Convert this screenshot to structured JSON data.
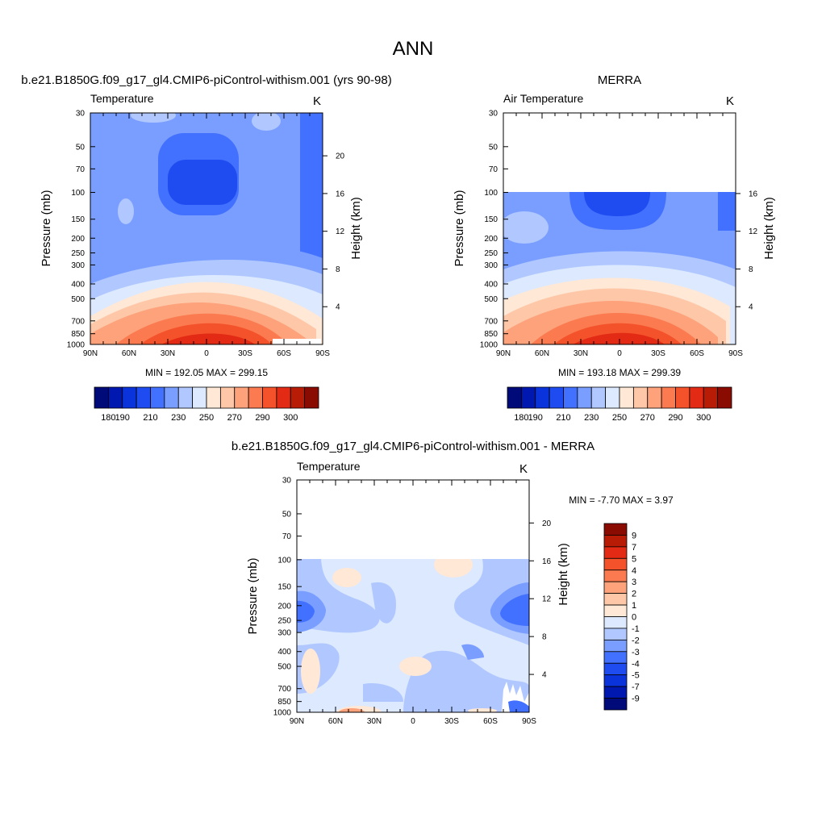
{
  "page": {
    "title": "ANN"
  },
  "panels": [
    {
      "id": "model",
      "header": "b.e21.B1850G.f09_g17_gl4.CMIP6-piControl-withism.001 (yrs 90-98)",
      "field_label": "Temperature",
      "units": "K",
      "ylabel_left": "Pressure (mb)",
      "ylabel_right": "Height (km)",
      "stats_text": "MIN = 192.05  MAX = 299.15",
      "stats": {
        "min": 192.05,
        "max": 299.15
      }
    },
    {
      "id": "obs",
      "header": "MERRA",
      "field_label": "Air Temperature",
      "units": "K",
      "ylabel_left": "Pressure (mb)",
      "ylabel_right": "Height (km)",
      "stats_text": "MIN = 193.18  MAX = 299.39",
      "stats": {
        "min": 193.18,
        "max": 299.39
      }
    },
    {
      "id": "diff",
      "header": "b.e21.B1850G.f09_g17_gl4.CMIP6-piControl-withism.001 - MERRA",
      "field_label": "Temperature",
      "units": "K",
      "ylabel_left": "Pressure (mb)",
      "ylabel_right": "Height (km)",
      "stats_text": "MIN =  -7.70  MAX =   3.97",
      "stats": {
        "min": -7.7,
        "max": 3.97
      }
    }
  ],
  "chart_data": [
    {
      "type": "heatmap",
      "panel": "model",
      "title": "Temperature",
      "units": "K",
      "xlabel": "",
      "ylabel": "Pressure (mb)",
      "ylabel_right": "Height (km)",
      "x_ticks": [
        "90N",
        "60N",
        "30N",
        "0",
        "30S",
        "60S",
        "90S"
      ],
      "x_range": [
        90,
        -90
      ],
      "y_ticks": [
        "30",
        "50",
        "70",
        "100",
        "150",
        "200",
        "250",
        "300",
        "400",
        "500",
        "700",
        "850",
        "1000"
      ],
      "y_range_mb": [
        30,
        1000
      ],
      "y_right_ticks": [
        "4",
        "8",
        "12",
        "16",
        "20"
      ],
      "min": 192.05,
      "max": 299.15
    },
    {
      "type": "heatmap",
      "panel": "obs",
      "title": "Air Temperature",
      "units": "K",
      "xlabel": "",
      "ylabel": "Pressure (mb)",
      "ylabel_right": "Height (km)",
      "x_ticks": [
        "90N",
        "60N",
        "30N",
        "0",
        "30S",
        "60S",
        "90S"
      ],
      "x_range": [
        90,
        -90
      ],
      "y_ticks": [
        "30",
        "50",
        "70",
        "100",
        "150",
        "200",
        "250",
        "300",
        "400",
        "500",
        "700",
        "850",
        "1000"
      ],
      "y_range_mb": [
        30,
        1000
      ],
      "data_top_mb": 100,
      "y_right_ticks": [
        "4",
        "8",
        "12",
        "16"
      ],
      "min": 193.18,
      "max": 299.39
    },
    {
      "type": "heatmap",
      "panel": "diff",
      "title": "Temperature",
      "units": "K",
      "xlabel": "",
      "ylabel": "Pressure (mb)",
      "ylabel_right": "Height (km)",
      "x_ticks": [
        "90N",
        "60N",
        "30N",
        "0",
        "30S",
        "60S",
        "90S"
      ],
      "x_range": [
        90,
        -90
      ],
      "y_ticks": [
        "30",
        "50",
        "70",
        "100",
        "150",
        "200",
        "250",
        "300",
        "400",
        "500",
        "700",
        "850",
        "1000"
      ],
      "y_range_mb": [
        30,
        1000
      ],
      "data_top_mb": 100,
      "y_right_ticks": [
        "4",
        "8",
        "12",
        "16",
        "20"
      ],
      "min": -7.7,
      "max": 3.97
    }
  ],
  "colorbars": {
    "temperature": {
      "labels": [
        "180",
        "190",
        "210",
        "230",
        "250",
        "270",
        "290",
        "300"
      ],
      "colors": [
        "#000a78",
        "#0018b0",
        "#0a33dc",
        "#1f4cf0",
        "#4371ff",
        "#7a9eff",
        "#b0c8ff",
        "#dce9ff",
        "#ffe8d6",
        "#fec8a8",
        "#fda27b",
        "#fb7a4f",
        "#f3522b",
        "#e32a14",
        "#b91c06",
        "#8a0b02"
      ]
    },
    "difference": {
      "labels": [
        "9",
        "7",
        "5",
        "4",
        "3",
        "2",
        "1",
        "0",
        "-1",
        "-2",
        "-3",
        "-4",
        "-5",
        "-7",
        "-9"
      ],
      "colors": [
        "#8a0b02",
        "#b91c06",
        "#e32a14",
        "#f3522b",
        "#fb7a4f",
        "#fda27b",
        "#fec8a8",
        "#ffe8d6",
        "#dce9ff",
        "#b0c8ff",
        "#7a9eff",
        "#4371ff",
        "#1f4cf0",
        "#0a33dc",
        "#0018b0",
        "#000a78"
      ]
    }
  }
}
